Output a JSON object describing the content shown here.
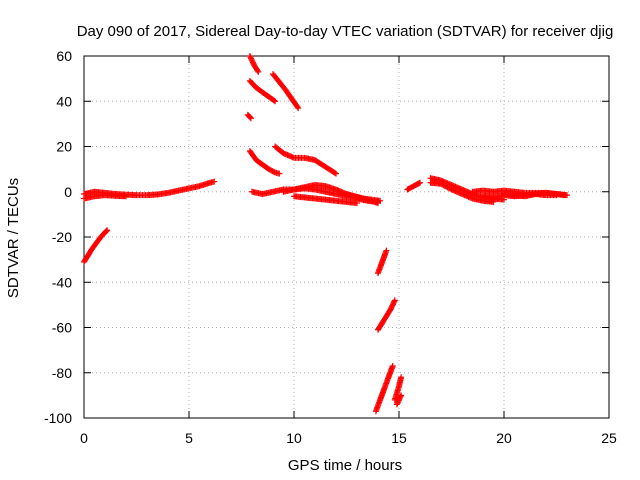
{
  "chart_data": {
    "type": "scatter",
    "title": "Day 090 of 2017, Sidereal Day-to-day VTEC variation (SDTVAR) for receiver djig",
    "xlabel": "GPS time / hours",
    "ylabel": "SDTVAR / TECUs",
    "xlim": [
      0,
      25
    ],
    "ylim": [
      -100,
      60
    ],
    "xticks": [
      "0",
      "5",
      "10",
      "15",
      "20",
      "25"
    ],
    "yticks": [
      "-100",
      "-80",
      "-60",
      "-40",
      "-20",
      "0",
      "20",
      "40",
      "60"
    ],
    "grid": true,
    "marker": "+",
    "color": "#ff0000",
    "series": [
      {
        "x": [
          0.0,
          0.5,
          1.0,
          1.5,
          2.0,
          2.5,
          3.0,
          3.5,
          4.0,
          4.5,
          5.0,
          5.5,
          6.0,
          6.2
        ],
        "y": [
          -1.0,
          0.0,
          -0.5,
          -1.0,
          -1.3,
          -1.5,
          -1.5,
          -1.2,
          -0.5,
          0.5,
          1.5,
          2.5,
          4.0,
          4.5
        ]
      },
      {
        "x": [
          0.0,
          0.5,
          1.0,
          1.5,
          2.0
        ],
        "y": [
          -3.0,
          -2.0,
          -1.5,
          -1.8,
          -2.0
        ]
      },
      {
        "x": [
          0.0,
          0.2,
          0.4,
          0.6,
          0.8,
          1.0,
          1.1
        ],
        "y": [
          -31.0,
          -28.0,
          -25.0,
          -22.5,
          -20.0,
          -18.0,
          -17.0
        ]
      },
      {
        "x": [
          7.9,
          8.1,
          8.3
        ],
        "y": [
          60.0,
          56.0,
          53.0
        ]
      },
      {
        "x": [
          7.9,
          8.2,
          8.5,
          8.8,
          9.1
        ],
        "y": [
          49.0,
          46.0,
          44.0,
          42.0,
          40.0
        ]
      },
      {
        "x": [
          9.0,
          9.3,
          9.6,
          9.9,
          10.2
        ],
        "y": [
          52.0,
          48.5,
          45.0,
          41.0,
          37.0
        ]
      },
      {
        "x": [
          7.8,
          7.95
        ],
        "y": [
          34.0,
          32.5
        ]
      },
      {
        "x": [
          7.9,
          8.2,
          8.5,
          8.8,
          9.1,
          9.3
        ],
        "y": [
          18.0,
          14.0,
          12.0,
          10.0,
          8.5,
          8.0
        ]
      },
      {
        "x": [
          9.1,
          9.5,
          10.0,
          10.5,
          11.0,
          11.5,
          12.0
        ],
        "y": [
          20.0,
          17.0,
          15.0,
          15.0,
          14.0,
          11.0,
          8.0
        ]
      },
      {
        "x": [
          8.0,
          8.5,
          9.0,
          9.5,
          10.0,
          10.5,
          11.0,
          11.5,
          12.0,
          12.5,
          13.0,
          13.5,
          14.0
        ],
        "y": [
          0.0,
          -1.0,
          0.0,
          1.0,
          1.0,
          1.5,
          1.0,
          0.0,
          -1.0,
          -2.0,
          -3.0,
          -4.0,
          -4.5
        ]
      },
      {
        "x": [
          9.5,
          10.0,
          10.5,
          11.0,
          11.5,
          12.0,
          12.5,
          13.0,
          13.5,
          14.0
        ],
        "y": [
          0.0,
          1.0,
          2.0,
          3.0,
          2.5,
          1.0,
          -1.0,
          -2.5,
          -3.5,
          -5.0
        ]
      },
      {
        "x": [
          10.0,
          10.5,
          11.0,
          11.5,
          12.0,
          12.5,
          13.0
        ],
        "y": [
          -2.0,
          -2.5,
          -3.0,
          -3.5,
          -4.0,
          -4.5,
          -5.0
        ]
      },
      {
        "x": [
          12.5,
          12.9,
          13.3,
          13.7,
          14.1
        ],
        "y": [
          -1.0,
          -2.0,
          -3.0,
          -3.5,
          -4.0
        ]
      },
      {
        "x": [
          14.0,
          14.2,
          14.4
        ],
        "y": [
          -36.0,
          -31.0,
          -26.0
        ]
      },
      {
        "x": [
          14.0,
          14.2,
          14.4,
          14.6,
          14.8
        ],
        "y": [
          -61.0,
          -58.0,
          -55.0,
          -52.0,
          -48.0
        ]
      },
      {
        "x": [
          13.9,
          14.1,
          14.3,
          14.5,
          14.7
        ],
        "y": [
          -97.0,
          -92.0,
          -87.0,
          -82.0,
          -77.0
        ]
      },
      {
        "x": [
          14.8,
          14.9,
          15.0,
          15.1
        ],
        "y": [
          -92.0,
          -89.0,
          -86.0,
          -82.0
        ]
      },
      {
        "x": [
          14.9,
          15.1
        ],
        "y": [
          -94.0,
          -90.0
        ]
      },
      {
        "x": [
          15.4,
          15.8,
          16.0
        ],
        "y": [
          1.0,
          3.0,
          4.0
        ]
      },
      {
        "x": [
          16.5,
          17.0,
          17.5,
          18.0,
          18.5,
          19.0,
          19.5,
          20.0
        ],
        "y": [
          6.0,
          5.0,
          3.0,
          1.0,
          -1.0,
          -2.5,
          -3.0,
          -3.5
        ]
      },
      {
        "x": [
          16.5,
          17.0,
          17.5,
          18.0,
          18.5,
          19.0,
          19.5
        ],
        "y": [
          4.0,
          3.5,
          1.0,
          -1.0,
          -3.0,
          -4.0,
          -4.5
        ]
      },
      {
        "x": [
          18.5,
          19.0,
          19.5,
          20.0,
          20.5,
          21.0,
          21.5,
          22.0,
          22.5,
          23.0
        ],
        "y": [
          0.0,
          0.5,
          0.0,
          0.5,
          0.0,
          -0.5,
          -0.5,
          -0.5,
          -1.0,
          -1.5
        ]
      },
      {
        "x": [
          19.0,
          19.5,
          20.0,
          20.5,
          21.0,
          21.5,
          22.0,
          22.5
        ],
        "y": [
          -2.0,
          -2.5,
          -1.5,
          -2.0,
          -1.5,
          -1.0,
          -1.5,
          -1.5
        ]
      },
      {
        "x": [
          20.0,
          20.5,
          21.0,
          21.5,
          22.0,
          22.5,
          22.9
        ],
        "y": [
          -1.0,
          -1.5,
          -2.0,
          -1.0,
          -0.5,
          -1.0,
          -1.5
        ]
      }
    ]
  }
}
